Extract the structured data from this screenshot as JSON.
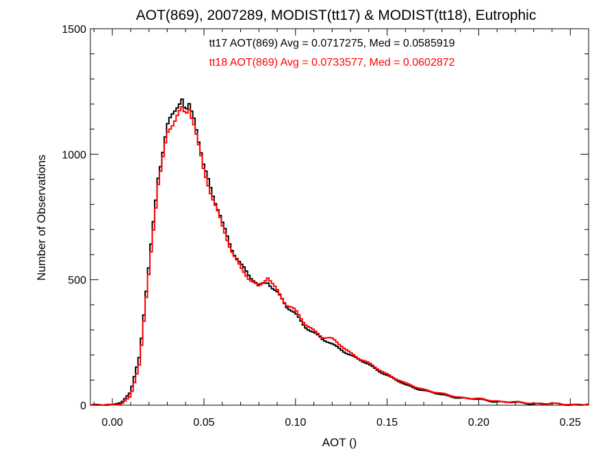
{
  "chart_data": {
    "type": "line",
    "title": "AOT(869), 2007289, MODIST(tt17) & MODIST(tt18), Eutrophic",
    "xlabel": "AOT ()",
    "ylabel": "Number of Observations",
    "xlim": [
      -0.012,
      0.26
    ],
    "ylim": [
      0,
      1500
    ],
    "x_ticks": [
      0.0,
      0.05,
      0.1,
      0.15,
      0.2,
      0.25
    ],
    "x_tick_labels": [
      "0.00",
      "0.05",
      "0.10",
      "0.15",
      "0.20",
      "0.25"
    ],
    "y_ticks": [
      0,
      500,
      1000,
      1500
    ],
    "y_tick_labels": [
      "0",
      "500",
      "1000",
      "1500"
    ],
    "grid": false,
    "legend": "top-center",
    "annotations": [
      {
        "text": "tt17 AOT(869) Avg = 0.0717275, Med = 0.0585919",
        "color": "#000000"
      },
      {
        "text": "tt18 AOT(869) Avg = 0.0733577, Med = 0.0602872",
        "color": "#ff0000"
      }
    ],
    "series": [
      {
        "name": "tt17",
        "color": "#000000",
        "x": [
          -0.01,
          0.0,
          0.005,
          0.01,
          0.015,
          0.02,
          0.025,
          0.03,
          0.035,
          0.038,
          0.04,
          0.042,
          0.045,
          0.05,
          0.055,
          0.06,
          0.065,
          0.07,
          0.075,
          0.08,
          0.085,
          0.09,
          0.095,
          0.1,
          0.105,
          0.11,
          0.115,
          0.12,
          0.125,
          0.13,
          0.135,
          0.14,
          0.145,
          0.15,
          0.155,
          0.16,
          0.17,
          0.18,
          0.19,
          0.2,
          0.21,
          0.22,
          0.23,
          0.24,
          0.25,
          0.26
        ],
        "y": [
          0,
          0,
          15,
          50,
          200,
          550,
          930,
          1100,
          1180,
          1210,
          1150,
          1200,
          1170,
          940,
          830,
          720,
          640,
          560,
          510,
          470,
          500,
          450,
          390,
          360,
          320,
          290,
          260,
          240,
          225,
          200,
          180,
          160,
          140,
          120,
          100,
          80,
          60,
          40,
          30,
          22,
          15,
          10,
          7,
          5,
          3,
          2
        ]
      },
      {
        "name": "tt18",
        "color": "#ff0000",
        "x": [
          -0.01,
          0.0,
          0.005,
          0.01,
          0.015,
          0.02,
          0.025,
          0.03,
          0.035,
          0.038,
          0.04,
          0.042,
          0.045,
          0.05,
          0.055,
          0.06,
          0.065,
          0.07,
          0.075,
          0.08,
          0.085,
          0.09,
          0.095,
          0.1,
          0.105,
          0.11,
          0.115,
          0.12,
          0.125,
          0.13,
          0.135,
          0.14,
          0.145,
          0.15,
          0.155,
          0.16,
          0.17,
          0.18,
          0.19,
          0.2,
          0.21,
          0.22,
          0.23,
          0.24,
          0.25,
          0.26
        ],
        "y": [
          0,
          0,
          8,
          35,
          170,
          520,
          900,
          1080,
          1150,
          1160,
          1130,
          1180,
          1140,
          930,
          820,
          700,
          630,
          550,
          500,
          460,
          520,
          460,
          400,
          370,
          330,
          300,
          270,
          260,
          240,
          210,
          185,
          165,
          145,
          125,
          105,
          85,
          64,
          44,
          32,
          24,
          17,
          11,
          8,
          5,
          3,
          2
        ]
      }
    ]
  }
}
